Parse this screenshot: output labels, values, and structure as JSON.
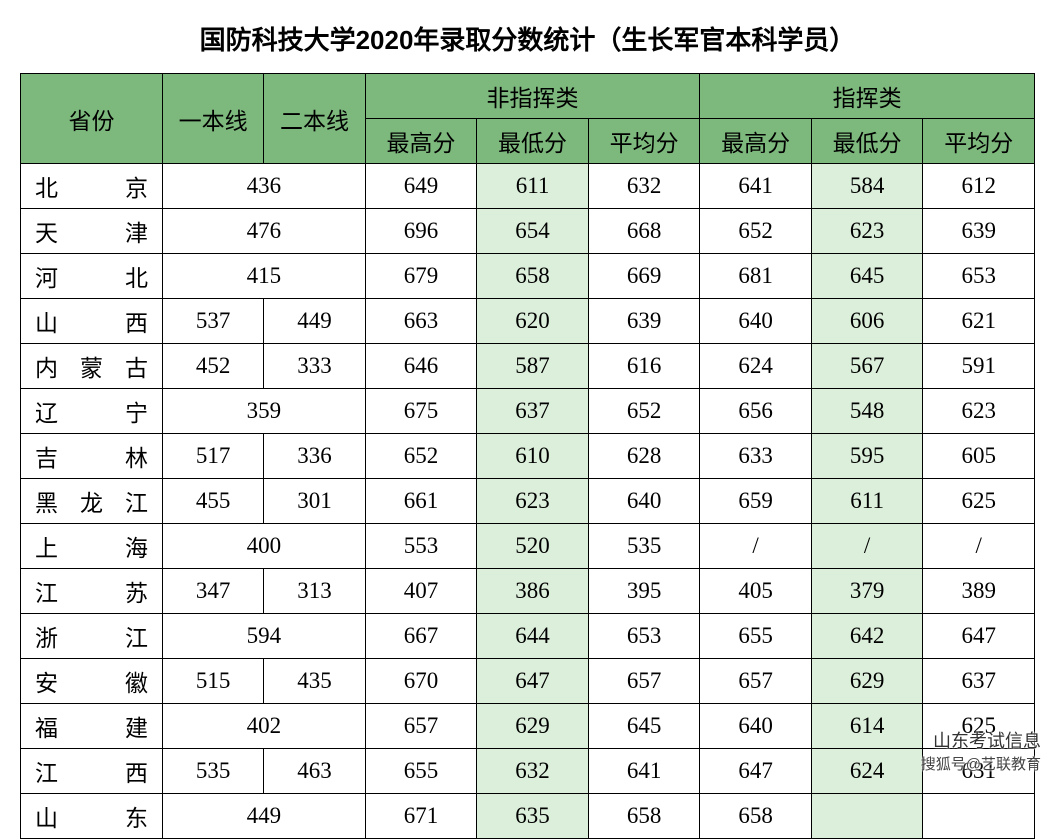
{
  "title": "国防科技大学2020年录取分数统计（生长军官本科学员）",
  "colors": {
    "header_bg": "#7db87d",
    "highlight_bg": "#dcefdb",
    "border": "#000000",
    "background": "#ffffff",
    "text": "#000000"
  },
  "layout": {
    "col_widths_pct": [
      14,
      10,
      10,
      11,
      11,
      11,
      11,
      11,
      11
    ],
    "title_fontsize": 26,
    "cell_fontsize": 23
  },
  "headers": {
    "province": "省份",
    "line1": "一本线",
    "line2": "二本线",
    "group_non_command": "非指挥类",
    "group_command": "指挥类",
    "max": "最高分",
    "min": "最低分",
    "avg": "平均分"
  },
  "rows": [
    {
      "prov": "北京",
      "l1": "436",
      "l2": null,
      "nc": [
        "649",
        "611",
        "632"
      ],
      "cm": [
        "641",
        "584",
        "612"
      ]
    },
    {
      "prov": "天津",
      "l1": "476",
      "l2": null,
      "nc": [
        "696",
        "654",
        "668"
      ],
      "cm": [
        "652",
        "623",
        "639"
      ]
    },
    {
      "prov": "河北",
      "l1": "415",
      "l2": null,
      "nc": [
        "679",
        "658",
        "669"
      ],
      "cm": [
        "681",
        "645",
        "653"
      ]
    },
    {
      "prov": "山西",
      "l1": "537",
      "l2": "449",
      "nc": [
        "663",
        "620",
        "639"
      ],
      "cm": [
        "640",
        "606",
        "621"
      ]
    },
    {
      "prov": "内蒙古",
      "l1": "452",
      "l2": "333",
      "nc": [
        "646",
        "587",
        "616"
      ],
      "cm": [
        "624",
        "567",
        "591"
      ]
    },
    {
      "prov": "辽宁",
      "l1": "359",
      "l2": null,
      "nc": [
        "675",
        "637",
        "652"
      ],
      "cm": [
        "656",
        "548",
        "623"
      ]
    },
    {
      "prov": "吉林",
      "l1": "517",
      "l2": "336",
      "nc": [
        "652",
        "610",
        "628"
      ],
      "cm": [
        "633",
        "595",
        "605"
      ]
    },
    {
      "prov": "黑龙江",
      "l1": "455",
      "l2": "301",
      "nc": [
        "661",
        "623",
        "640"
      ],
      "cm": [
        "659",
        "611",
        "625"
      ]
    },
    {
      "prov": "上海",
      "l1": "400",
      "l2": null,
      "nc": [
        "553",
        "520",
        "535"
      ],
      "cm": [
        "/",
        "/",
        "/"
      ]
    },
    {
      "prov": "江苏",
      "l1": "347",
      "l2": "313",
      "nc": [
        "407",
        "386",
        "395"
      ],
      "cm": [
        "405",
        "379",
        "389"
      ]
    },
    {
      "prov": "浙江",
      "l1": "594",
      "l2": null,
      "nc": [
        "667",
        "644",
        "653"
      ],
      "cm": [
        "655",
        "642",
        "647"
      ]
    },
    {
      "prov": "安徽",
      "l1": "515",
      "l2": "435",
      "nc": [
        "670",
        "647",
        "657"
      ],
      "cm": [
        "657",
        "629",
        "637"
      ]
    },
    {
      "prov": "福建",
      "l1": "402",
      "l2": null,
      "nc": [
        "657",
        "629",
        "645"
      ],
      "cm": [
        "640",
        "614",
        "625"
      ]
    },
    {
      "prov": "江西",
      "l1": "535",
      "l2": "463",
      "nc": [
        "655",
        "632",
        "641"
      ],
      "cm": [
        "647",
        "624",
        "631"
      ]
    },
    {
      "prov": "山东",
      "l1": "449",
      "l2": null,
      "nc": [
        "671",
        "635",
        "658"
      ],
      "cm": [
        "658",
        "",
        ""
      ]
    }
  ],
  "watermark": {
    "line1": "山东考试信息",
    "line2": "搜狐号@艺联教育"
  }
}
